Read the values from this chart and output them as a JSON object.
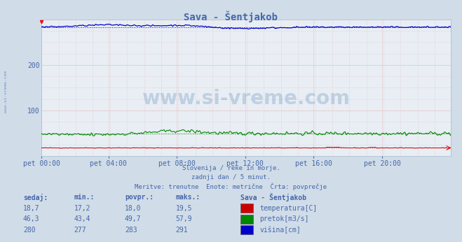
{
  "title": "Sava - Šentjakob",
  "bg_color": "#d0dce8",
  "plot_bg_color": "#e8eef4",
  "grid_color_major": "#ee9999",
  "grid_color_minor": "#ddbbbb",
  "text_color": "#4466aa",
  "subtitle_lines": [
    "Slovenija / reke in morje.",
    "zadnji dan / 5 minut.",
    "Meritve: trenutne  Enote: metrične  Črta: povprečje"
  ],
  "xlabel_ticks": [
    "pet 00:00",
    "pet 04:00",
    "pet 08:00",
    "pet 12:00",
    "pet 16:00",
    "pet 20:00"
  ],
  "xlabel_tick_fracs": [
    0.0,
    0.1667,
    0.3333,
    0.5,
    0.6667,
    0.8333
  ],
  "ylim": [
    0,
    300
  ],
  "yticks": [
    100,
    200
  ],
  "n_points": 288,
  "temp_color": "#cc0000",
  "pretok_color": "#008800",
  "visina_color": "#0000cc",
  "temp_avg": 18.0,
  "temp_min": 17.2,
  "temp_max": 19.5,
  "temp_sedaj": 18.7,
  "pretok_avg": 49.7,
  "pretok_min": 43.4,
  "pretok_max": 57.9,
  "pretok_sedaj": 46.3,
  "visina_avg": 283,
  "visina_min": 277,
  "visina_max": 291,
  "visina_sedaj": 280,
  "table_headers": [
    "sedaj:",
    "min.:",
    "povpr.:",
    "maks.:"
  ],
  "table_label": "Sava - Šentjakob",
  "legend_items": [
    {
      "color": "#cc0000",
      "label": "temperatura[C]"
    },
    {
      "color": "#008800",
      "label": "pretok[m3/s]"
    },
    {
      "color": "#0000cc",
      "label": "višina[cm]"
    }
  ],
  "watermark_text": "www.si-vreme.com",
  "side_text": "www.si-vreme.com",
  "dpi": 100,
  "fig_width": 6.59,
  "fig_height": 3.46
}
